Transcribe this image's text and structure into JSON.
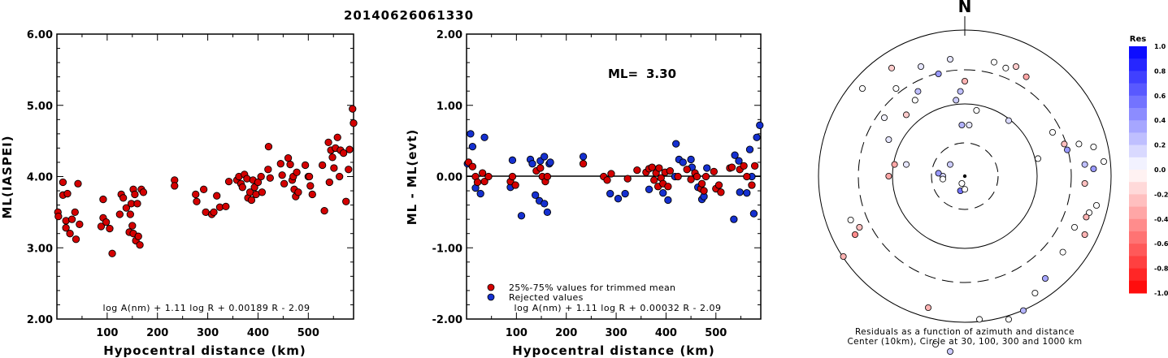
{
  "event_id": "20140626061330",
  "chart_data": [
    {
      "type": "scatter",
      "name": "ml-vs-distance",
      "xlabel": "Hypocentral distance (km)",
      "ylabel": "ML(IASPEI)",
      "xlim": [
        0,
        590
      ],
      "ylim": [
        2.0,
        6.0
      ],
      "x_ticks": [
        "100",
        "200",
        "300",
        "400",
        "500"
      ],
      "y_ticks": [
        "2.00",
        "3.00",
        "4.00",
        "5.00",
        "6.00"
      ],
      "formula": "log A(nm) + 1.11 log R + 0.00189 R - 2.09",
      "point_color": "#d40000",
      "points": [
        [
          2,
          3.5
        ],
        [
          3,
          3.44
        ],
        [
          12,
          3.92
        ],
        [
          12,
          3.74
        ],
        [
          18,
          3.38
        ],
        [
          18,
          3.28
        ],
        [
          21,
          3.76
        ],
        [
          26,
          3.2
        ],
        [
          30,
          3.4
        ],
        [
          36,
          3.5
        ],
        [
          38,
          3.12
        ],
        [
          42,
          3.9
        ],
        [
          45,
          3.33
        ],
        [
          88,
          3.3
        ],
        [
          92,
          3.68
        ],
        [
          92,
          3.42
        ],
        [
          98,
          3.36
        ],
        [
          105,
          3.27
        ],
        [
          110,
          2.92
        ],
        [
          125,
          3.47
        ],
        [
          128,
          3.75
        ],
        [
          132,
          3.7
        ],
        [
          138,
          3.56
        ],
        [
          144,
          3.22
        ],
        [
          146,
          3.47
        ],
        [
          148,
          3.62
        ],
        [
          150,
          3.31
        ],
        [
          152,
          3.82
        ],
        [
          152,
          3.2
        ],
        [
          155,
          3.75
        ],
        [
          157,
          3.1
        ],
        [
          160,
          3.62
        ],
        [
          162,
          3.16
        ],
        [
          165,
          3.04
        ],
        [
          168,
          3.82
        ],
        [
          172,
          3.78
        ],
        [
          234,
          3.95
        ],
        [
          234,
          3.87
        ],
        [
          276,
          3.75
        ],
        [
          278,
          3.65
        ],
        [
          292,
          3.82
        ],
        [
          296,
          3.5
        ],
        [
          308,
          3.47
        ],
        [
          312,
          3.5
        ],
        [
          318,
          3.73
        ],
        [
          324,
          3.57
        ],
        [
          336,
          3.58
        ],
        [
          342,
          3.93
        ],
        [
          358,
          3.95
        ],
        [
          362,
          4.0
        ],
        [
          366,
          3.9
        ],
        [
          369,
          3.85
        ],
        [
          373,
          4.03
        ],
        [
          378,
          3.97
        ],
        [
          380,
          3.7
        ],
        [
          384,
          3.78
        ],
        [
          387,
          3.67
        ],
        [
          390,
          3.95
        ],
        [
          393,
          3.85
        ],
        [
          396,
          3.75
        ],
        [
          400,
          3.92
        ],
        [
          406,
          4.0
        ],
        [
          408,
          3.78
        ],
        [
          420,
          4.1
        ],
        [
          421,
          4.42
        ],
        [
          424,
          3.98
        ],
        [
          445,
          4.18
        ],
        [
          448,
          4.02
        ],
        [
          452,
          3.9
        ],
        [
          460,
          4.26
        ],
        [
          464,
          4.17
        ],
        [
          468,
          3.95
        ],
        [
          470,
          4.0
        ],
        [
          472,
          3.82
        ],
        [
          475,
          3.72
        ],
        [
          477,
          4.06
        ],
        [
          480,
          3.78
        ],
        [
          494,
          4.16
        ],
        [
          500,
          4.0
        ],
        [
          502,
          4.0
        ],
        [
          504,
          3.87
        ],
        [
          508,
          3.75
        ],
        [
          528,
          4.16
        ],
        [
          532,
          3.52
        ],
        [
          540,
          4.48
        ],
        [
          542,
          3.92
        ],
        [
          545,
          4.37
        ],
        [
          548,
          4.27
        ],
        [
          551,
          4.12
        ],
        [
          554,
          4.4
        ],
        [
          558,
          4.55
        ],
        [
          562,
          4.0
        ],
        [
          564,
          4.37
        ],
        [
          570,
          4.33
        ],
        [
          575,
          3.65
        ],
        [
          580,
          4.1
        ],
        [
          582,
          4.38
        ],
        [
          588,
          4.95
        ],
        [
          590,
          4.75
        ]
      ]
    },
    {
      "type": "scatter",
      "name": "residual-vs-distance",
      "xlabel": "Hypocentral distance (km)",
      "ylabel": "ML - ML(evt)",
      "xlim": [
        0,
        590
      ],
      "ylim": [
        -2.0,
        2.0
      ],
      "x_ticks": [
        "100",
        "200",
        "300",
        "400",
        "500"
      ],
      "y_ticks": [
        "-2.00",
        "-1.00",
        "0.00",
        "1.00",
        "2.00"
      ],
      "formula": "log A(nm) + 1.11 log R + 0.00032 R - 2.09",
      "ml_label": "ML=",
      "ml_value": "3.30",
      "legend": [
        "25%-75% values for trimmed mean",
        "Rejected values"
      ],
      "colors": {
        "trimmed": "#d40000",
        "rejected": "#1530d0"
      },
      "trimmed": [
        [
          4,
          0.2
        ],
        [
          12,
          0.14
        ],
        [
          18,
          0.0
        ],
        [
          22,
          -0.08
        ],
        [
          32,
          0.05
        ],
        [
          36,
          -0.07
        ],
        [
          44,
          0.0
        ],
        [
          88,
          -0.07
        ],
        [
          92,
          0.0
        ],
        [
          98,
          -0.12
        ],
        [
          140,
          0.08
        ],
        [
          148,
          0.12
        ],
        [
          152,
          0.0
        ],
        [
          158,
          -0.07
        ],
        [
          162,
          0.0
        ],
        [
          234,
          0.18
        ],
        [
          275,
          0.0
        ],
        [
          282,
          -0.05
        ],
        [
          290,
          0.04
        ],
        [
          323,
          -0.03
        ],
        [
          342,
          0.09
        ],
        [
          360,
          0.06
        ],
        [
          366,
          0.11
        ],
        [
          372,
          0.13
        ],
        [
          376,
          -0.05
        ],
        [
          380,
          0.05
        ],
        [
          384,
          -0.14
        ],
        [
          386,
          0.12
        ],
        [
          390,
          -0.02
        ],
        [
          394,
          -0.1
        ],
        [
          398,
          0.06
        ],
        [
          404,
          -0.14
        ],
        [
          408,
          0.08
        ],
        [
          424,
          0.0
        ],
        [
          442,
          0.1
        ],
        [
          450,
          -0.04
        ],
        [
          458,
          0.05
        ],
        [
          462,
          0.0
        ],
        [
          470,
          -0.17
        ],
        [
          472,
          -0.1
        ],
        [
          476,
          -0.2
        ],
        [
          480,
          0.0
        ],
        [
          496,
          0.07
        ],
        [
          500,
          -0.17
        ],
        [
          506,
          -0.12
        ],
        [
          510,
          -0.22
        ],
        [
          528,
          0.12
        ],
        [
          532,
          0.13
        ],
        [
          548,
          0.1
        ],
        [
          556,
          0.15
        ],
        [
          562,
          0.0
        ],
        [
          572,
          -0.12
        ],
        [
          578,
          0.15
        ]
      ],
      "rejected": [
        [
          2,
          0.18
        ],
        [
          8,
          0.6
        ],
        [
          12,
          0.42
        ],
        [
          18,
          -0.16
        ],
        [
          28,
          -0.24
        ],
        [
          36,
          0.55
        ],
        [
          88,
          -0.15
        ],
        [
          92,
          0.23
        ],
        [
          110,
          -0.55
        ],
        [
          128,
          0.24
        ],
        [
          132,
          0.18
        ],
        [
          138,
          -0.26
        ],
        [
          146,
          -0.34
        ],
        [
          148,
          0.22
        ],
        [
          156,
          0.28
        ],
        [
          156,
          -0.38
        ],
        [
          162,
          -0.5
        ],
        [
          166,
          0.18
        ],
        [
          168,
          0.2
        ],
        [
          234,
          0.28
        ],
        [
          288,
          -0.24
        ],
        [
          304,
          -0.31
        ],
        [
          318,
          -0.24
        ],
        [
          366,
          -0.18
        ],
        [
          394,
          -0.23
        ],
        [
          404,
          -0.33
        ],
        [
          418,
          0.0
        ],
        [
          420,
          0.46
        ],
        [
          426,
          0.24
        ],
        [
          434,
          0.2
        ],
        [
          450,
          0.24
        ],
        [
          452,
          0.13
        ],
        [
          464,
          -0.15
        ],
        [
          472,
          -0.32
        ],
        [
          476,
          -0.28
        ],
        [
          482,
          0.12
        ],
        [
          536,
          -0.6
        ],
        [
          538,
          0.3
        ],
        [
          546,
          0.22
        ],
        [
          548,
          -0.22
        ],
        [
          562,
          -0.23
        ],
        [
          568,
          0.38
        ],
        [
          572,
          0.0
        ],
        [
          576,
          -0.52
        ],
        [
          582,
          0.55
        ],
        [
          588,
          0.72
        ]
      ]
    },
    {
      "type": "scatter",
      "name": "azimuth-residual-map",
      "north_label": "N",
      "caption": [
        "Residuals as a function of azimuth and distance",
        "Center (10km), Circle at 30, 100, 300 and 1000 km"
      ],
      "colorbar_title": "Res",
      "colorbar_ticks": [
        "1.0",
        "0.8",
        "0.6",
        "0.4",
        "0.2",
        "0.0",
        "-0.2",
        "-0.4",
        "-0.6",
        "-0.8",
        "-1.0"
      ],
      "rings_km": [
        30,
        100,
        300,
        1000
      ],
      "stations": [
        [
          -3,
          -58,
          0.25
        ],
        [
          -2,
          -35,
          0.3
        ],
        [
          3,
          -35,
          0.1
        ],
        [
          8,
          -45,
          0.0
        ],
        [
          30,
          -38,
          0.15
        ],
        [
          0,
          -65,
          -0.3
        ],
        [
          -10,
          -80,
          0.1
        ],
        [
          -18,
          -70,
          0.4
        ],
        [
          -52,
          0,
          -0.35
        ],
        [
          -40,
          -8,
          0.1
        ],
        [
          -6,
          -52,
          0.2
        ],
        [
          28,
          -74,
          0.0
        ],
        [
          35,
          -75,
          -0.2
        ],
        [
          42,
          -68,
          -0.35
        ],
        [
          50,
          -12,
          0.0
        ],
        [
          68,
          -22,
          -0.25
        ],
        [
          70,
          -18,
          0.4
        ],
        [
          78,
          -22,
          0.0
        ],
        [
          88,
          -20,
          0.0
        ],
        [
          20,
          -78,
          0.0
        ],
        [
          -40,
          -42,
          -0.2
        ],
        [
          -34,
          -52,
          0.0
        ],
        [
          -32,
          -58,
          0.25
        ],
        [
          -15,
          0,
          0.15
        ],
        [
          -18,
          -2,
          0.4
        ],
        [
          -15,
          2,
          0.0
        ],
        [
          -10,
          -8,
          0.2
        ],
        [
          -70,
          -60,
          0.0
        ],
        [
          -50,
          -74,
          -0.2
        ],
        [
          -47,
          -60,
          0.0
        ],
        [
          -30,
          -75,
          0.1
        ],
        [
          -3,
          10,
          0.55
        ],
        [
          -2,
          5,
          0.0
        ],
        [
          0,
          9,
          0.0
        ],
        [
          -72,
          35,
          -0.25
        ],
        [
          -83,
          55,
          -0.3
        ],
        [
          -78,
          30,
          0.0
        ],
        [
          -75,
          40,
          -0.45
        ],
        [
          -10,
          120,
          0.2
        ],
        [
          -20,
          115,
          0.0
        ],
        [
          -25,
          90,
          -0.3
        ],
        [
          10,
          98,
          0.0
        ],
        [
          30,
          98,
          0.0
        ],
        [
          40,
          92,
          0.3
        ],
        [
          48,
          80,
          0.0
        ],
        [
          55,
          70,
          0.35
        ],
        [
          67,
          52,
          0.0
        ],
        [
          82,
          40,
          -0.3
        ],
        [
          75,
          35,
          0.0
        ],
        [
          85,
          25,
          0.0
        ],
        [
          90,
          20,
          0.0
        ],
        [
          95,
          -10,
          0.0
        ],
        [
          88,
          -5,
          0.4
        ],
        [
          82,
          -8,
          0.25
        ],
        [
          82,
          5,
          -0.25
        ],
        [
          83,
          28,
          -0.3
        ],
        [
          -48,
          -8,
          -0.35
        ],
        [
          -52,
          -25,
          0.1
        ],
        [
          -55,
          -40,
          0.05
        ],
        [
          60,
          -30,
          0.0
        ]
      ]
    }
  ]
}
